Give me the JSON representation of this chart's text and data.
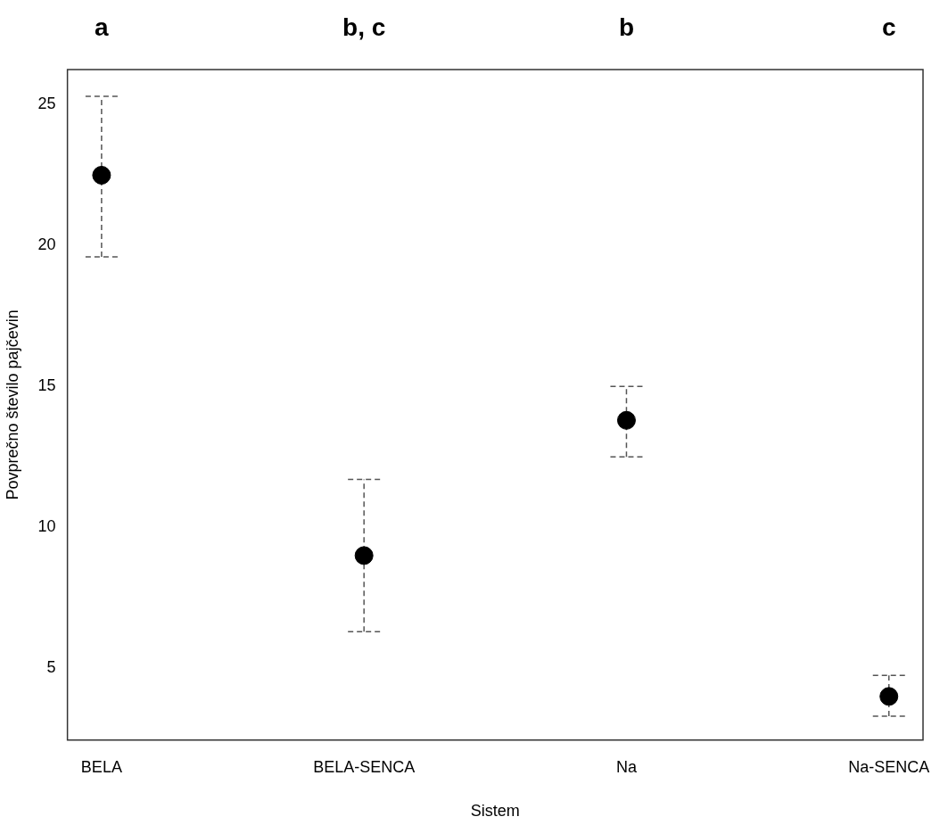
{
  "chart_data": {
    "type": "scatter",
    "xlabel": "Sistem",
    "ylabel": "Povprečno število pajčevin",
    "categories": [
      "BELA",
      "BELA-SENCA",
      "Na",
      "Na-SENCA"
    ],
    "values": [
      22.5,
      9.0,
      13.8,
      4.0
    ],
    "errors": [
      [
        19.6,
        25.3
      ],
      [
        6.3,
        11.7
      ],
      [
        12.5,
        15.0
      ],
      [
        3.3,
        4.75
      ]
    ],
    "color": "#000000",
    "marker": "circle",
    "ylim": [
      2.45,
      26.25
    ],
    "yticks": [
      5,
      10,
      15,
      20,
      25
    ],
    "annotations": [
      "a",
      "b, c",
      "b",
      "c"
    ]
  }
}
